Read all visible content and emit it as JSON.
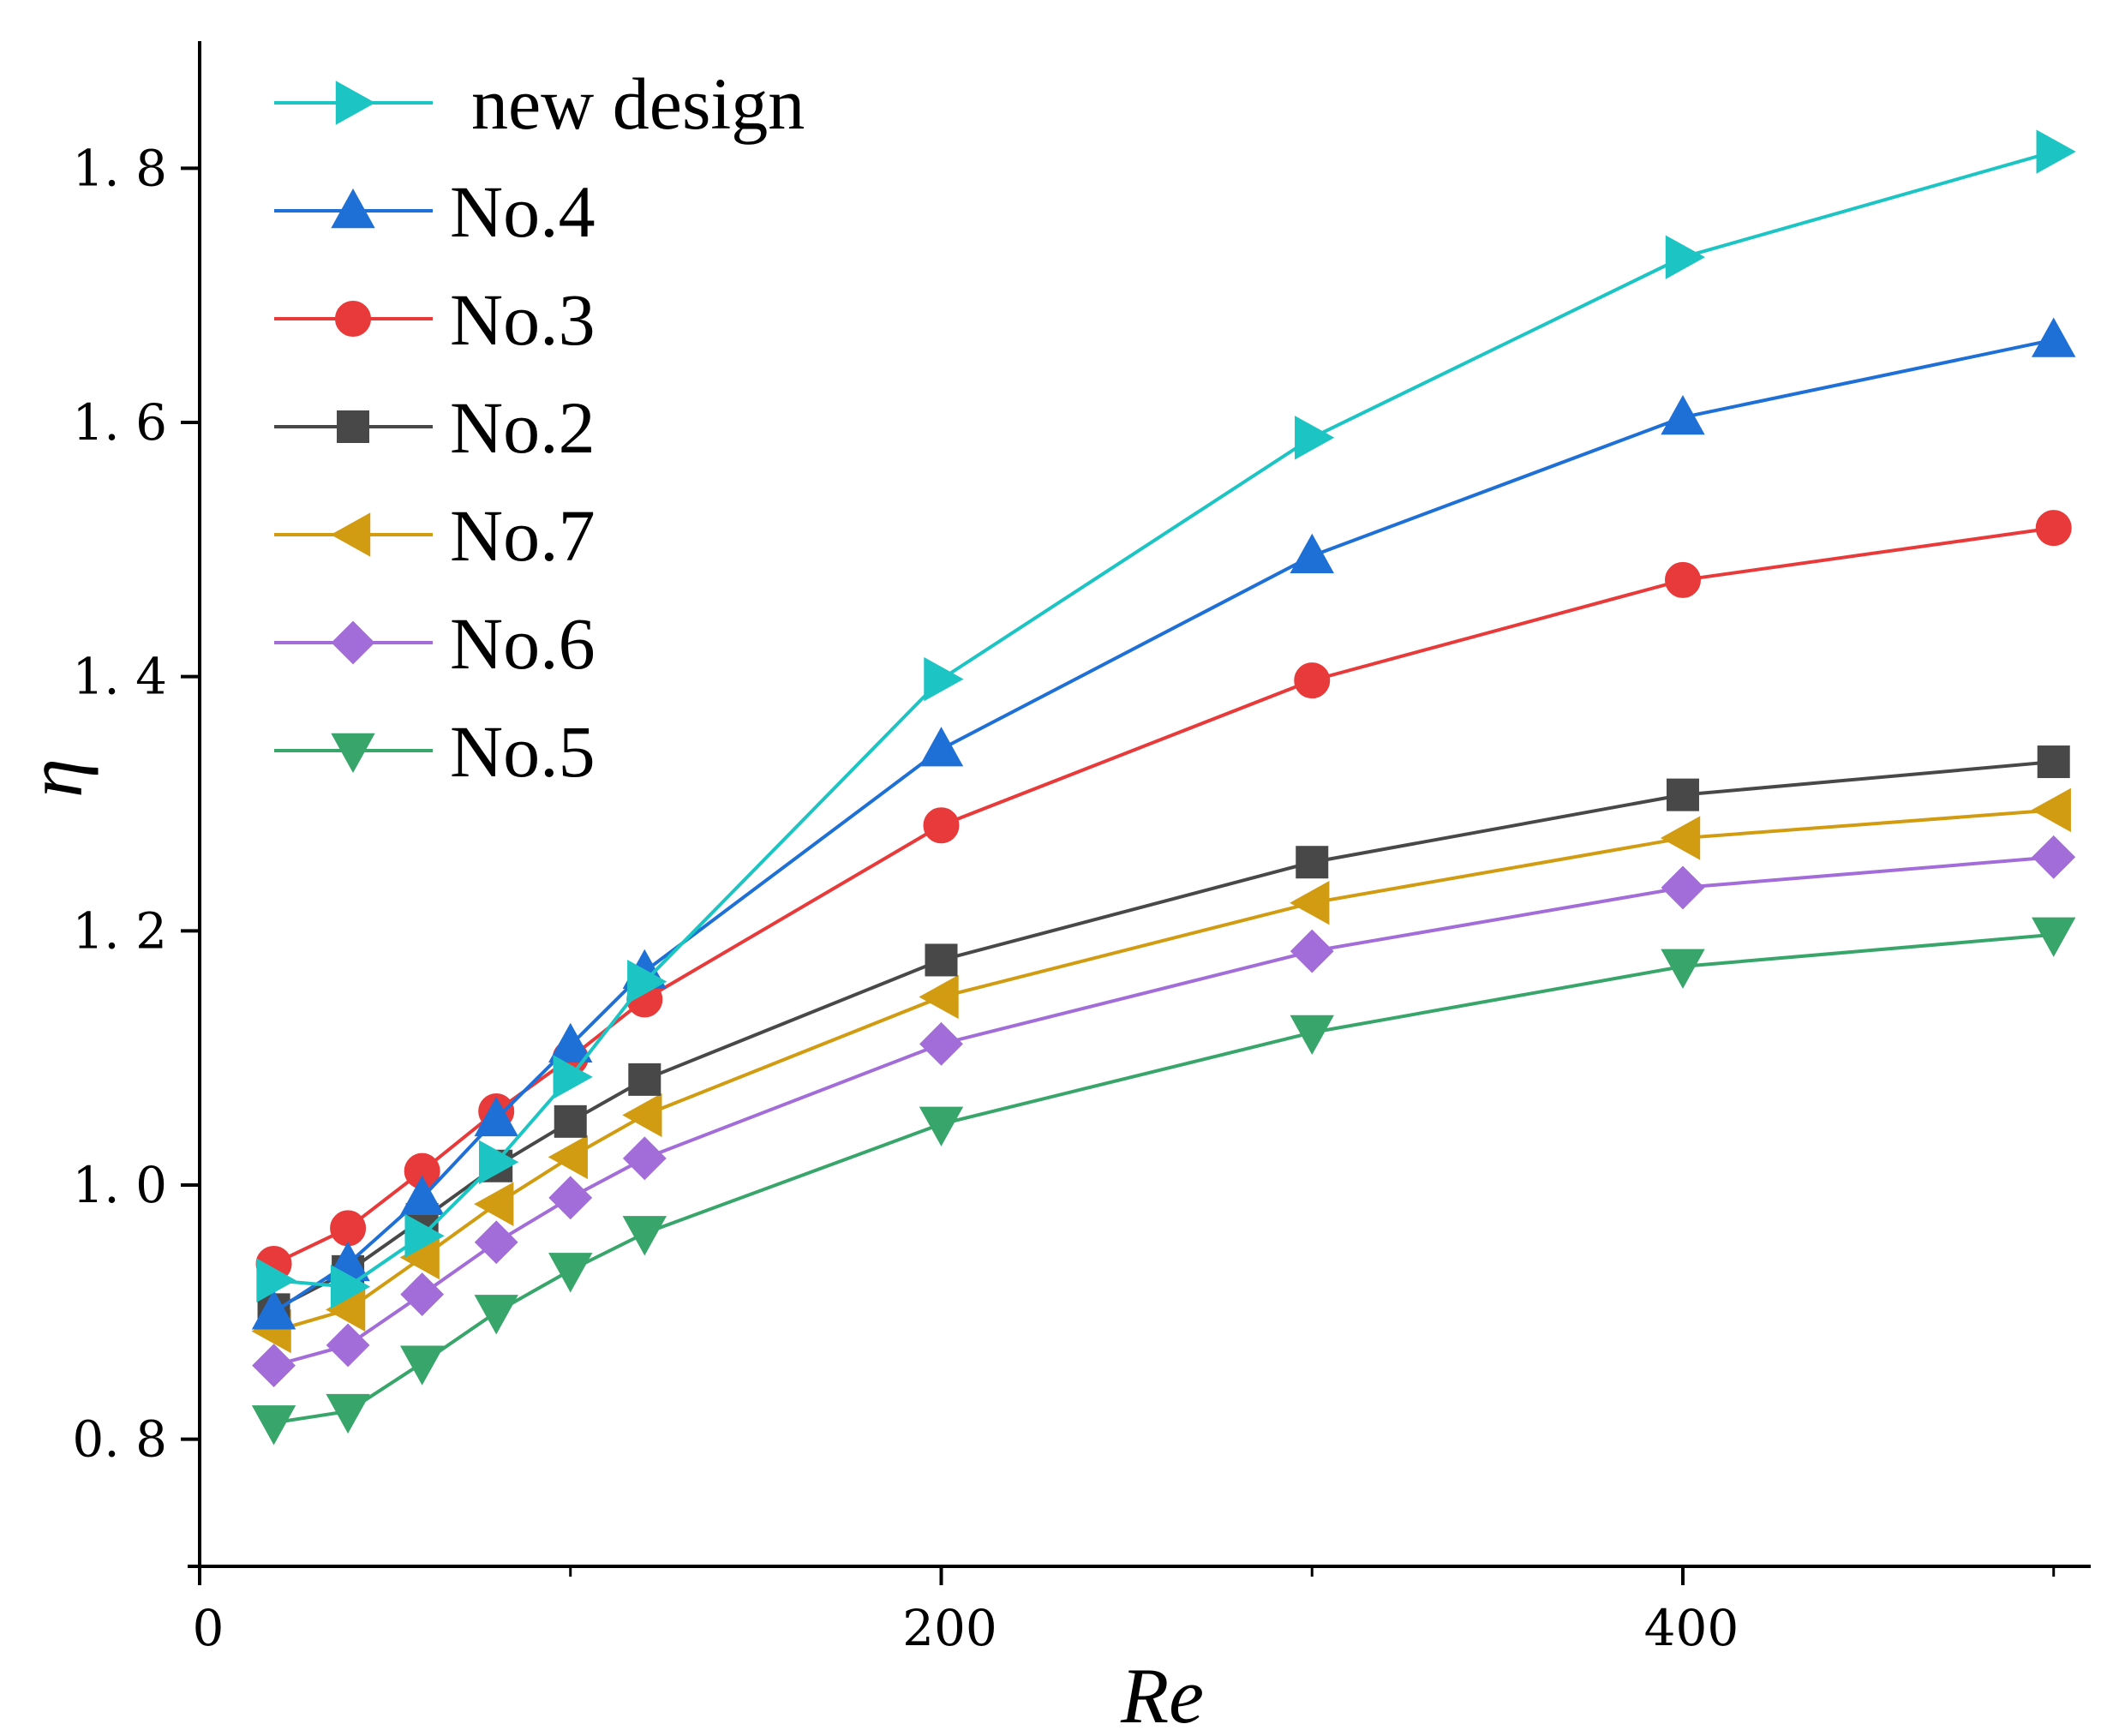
{
  "chart_data": {
    "type": "line",
    "title": "",
    "xlabel": "Re",
    "ylabel": "η",
    "xlim": [
      0,
      510
    ],
    "ylim": [
      0.7,
      1.9
    ],
    "xticks": [
      0,
      200,
      400
    ],
    "yticks": [
      0.8,
      1.0,
      1.2,
      1.4,
      1.6,
      1.8
    ],
    "ytick_labels": [
      "0. 8",
      "1. 0",
      "1. 2",
      "1. 4",
      "1. 6",
      "1. 8"
    ],
    "grid": false,
    "legend_position": "top-left",
    "x": [
      20,
      40,
      60,
      80,
      100,
      120,
      200,
      300,
      400,
      500
    ],
    "series": [
      {
        "name": "new design",
        "color": "#1dc4c4",
        "marker": "triangle-right",
        "values": [
          0.925,
          0.92,
          0.96,
          1.018,
          1.085,
          1.16,
          1.398,
          1.588,
          1.73,
          1.813
        ]
      },
      {
        "name": "No.4",
        "color": "#1e6fd6",
        "marker": "triangle-up",
        "values": [
          0.9,
          0.938,
          0.99,
          1.052,
          1.11,
          1.168,
          1.343,
          1.495,
          1.604,
          1.665
        ]
      },
      {
        "name": "No.3",
        "color": "#e83a3a",
        "marker": "circle",
        "values": [
          0.938,
          0.966,
          1.011,
          1.058,
          1.1,
          1.146,
          1.283,
          1.397,
          1.476,
          1.517
        ]
      },
      {
        "name": "No.2",
        "color": "#484848",
        "marker": "square",
        "values": [
          0.902,
          0.932,
          0.973,
          1.015,
          1.05,
          1.083,
          1.177,
          1.254,
          1.307,
          1.333
        ]
      },
      {
        "name": "No.7",
        "color": "#d19c12",
        "marker": "triangle-left",
        "values": [
          0.885,
          0.902,
          0.943,
          0.985,
          1.022,
          1.055,
          1.148,
          1.222,
          1.273,
          1.295
        ]
      },
      {
        "name": "No.6",
        "color": "#a26cd9",
        "marker": "diamond",
        "values": [
          0.858,
          0.874,
          0.914,
          0.955,
          0.99,
          1.021,
          1.111,
          1.184,
          1.234,
          1.258
        ]
      },
      {
        "name": "No.5",
        "color": "#38a56a",
        "marker": "triangle-down",
        "values": [
          0.813,
          0.822,
          0.86,
          0.9,
          0.933,
          0.962,
          1.048,
          1.12,
          1.172,
          1.197
        ]
      }
    ]
  }
}
